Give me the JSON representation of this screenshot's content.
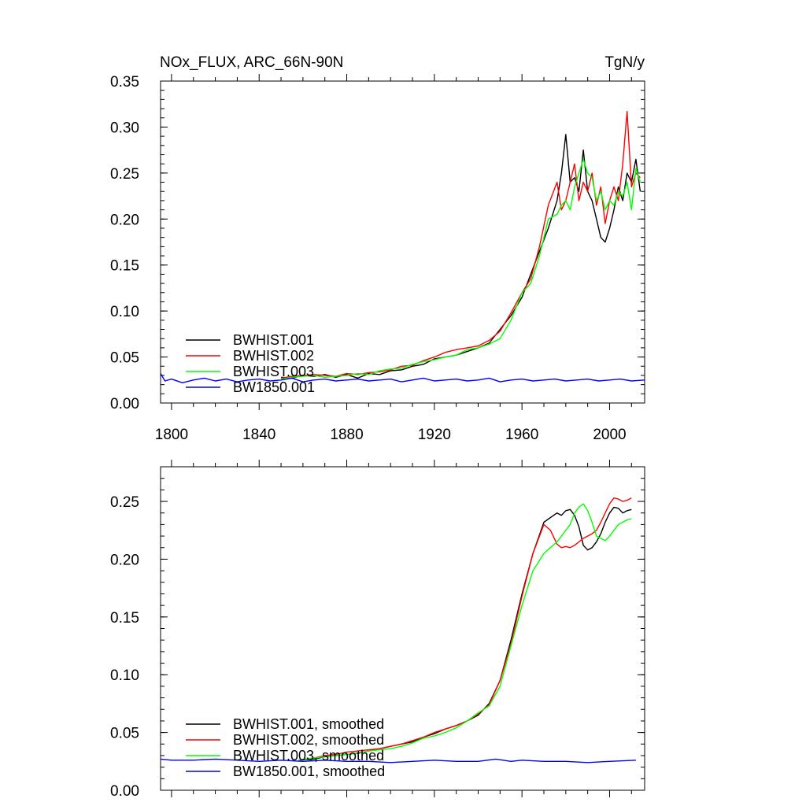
{
  "chart_data": [
    {
      "type": "line",
      "title": "NOx_FLUX, ARC_66N-90N",
      "units": "TgN/y",
      "xlim": [
        1795,
        2016
      ],
      "ylim": [
        0,
        0.35
      ],
      "xticks": [
        1800,
        1840,
        1880,
        1920,
        1960,
        2000
      ],
      "xtick_labels": [
        "1800",
        "1840",
        "1880",
        "1920",
        "1960",
        "2000"
      ],
      "yticks": [
        0,
        0.05,
        0.1,
        0.15,
        0.2,
        0.25,
        0.3,
        0.35
      ],
      "ytick_labels": [
        "0.00",
        "0.05",
        "0.10",
        "0.15",
        "0.20",
        "0.25",
        "0.30",
        "0.35"
      ],
      "legend_position": "bottom-left",
      "series": [
        {
          "name": "BWHIST.001",
          "color": "#000000",
          "x": [
            1850,
            1855,
            1860,
            1865,
            1870,
            1875,
            1880,
            1885,
            1890,
            1895,
            1900,
            1905,
            1910,
            1915,
            1920,
            1925,
            1930,
            1935,
            1940,
            1945,
            1950,
            1955,
            1960,
            1964,
            1968,
            1972,
            1976,
            1978,
            1980,
            1982,
            1984,
            1986,
            1988,
            1990,
            1992,
            1994,
            1996,
            1998,
            2000,
            2002,
            2004,
            2006,
            2008,
            2010,
            2012,
            2014
          ],
          "y": [
            0.028,
            0.027,
            0.03,
            0.029,
            0.031,
            0.028,
            0.031,
            0.027,
            0.032,
            0.031,
            0.035,
            0.036,
            0.04,
            0.042,
            0.048,
            0.05,
            0.052,
            0.056,
            0.06,
            0.065,
            0.08,
            0.095,
            0.115,
            0.14,
            0.165,
            0.19,
            0.22,
            0.25,
            0.292,
            0.24,
            0.245,
            0.23,
            0.275,
            0.23,
            0.22,
            0.2,
            0.18,
            0.175,
            0.19,
            0.21,
            0.235,
            0.22,
            0.25,
            0.24,
            0.265,
            0.23
          ]
        },
        {
          "name": "BWHIST.002",
          "color": "#ff0000",
          "x": [
            1850,
            1855,
            1860,
            1865,
            1870,
            1875,
            1880,
            1885,
            1890,
            1895,
            1900,
            1905,
            1910,
            1915,
            1920,
            1925,
            1930,
            1935,
            1940,
            1945,
            1950,
            1955,
            1960,
            1964,
            1968,
            1972,
            1976,
            1978,
            1980,
            1982,
            1984,
            1986,
            1988,
            1990,
            1992,
            1994,
            1996,
            1998,
            2000,
            2002,
            2004,
            2006,
            2008,
            2010,
            2012,
            2014
          ],
          "y": [
            0.027,
            0.029,
            0.03,
            0.031,
            0.03,
            0.029,
            0.032,
            0.031,
            0.033,
            0.034,
            0.036,
            0.04,
            0.041,
            0.046,
            0.05,
            0.055,
            0.058,
            0.06,
            0.062,
            0.068,
            0.078,
            0.098,
            0.12,
            0.135,
            0.17,
            0.215,
            0.24,
            0.21,
            0.22,
            0.24,
            0.26,
            0.22,
            0.24,
            0.23,
            0.25,
            0.215,
            0.235,
            0.195,
            0.22,
            0.235,
            0.22,
            0.26,
            0.317,
            0.235,
            0.25,
            0.245
          ]
        },
        {
          "name": "BWHIST.003",
          "color": "#00ff00",
          "x": [
            1850,
            1855,
            1860,
            1865,
            1870,
            1875,
            1880,
            1885,
            1890,
            1895,
            1900,
            1905,
            1910,
            1915,
            1920,
            1925,
            1930,
            1935,
            1940,
            1945,
            1950,
            1955,
            1960,
            1964,
            1968,
            1972,
            1976,
            1978,
            1980,
            1982,
            1984,
            1986,
            1988,
            1990,
            1992,
            1994,
            1996,
            1998,
            2000,
            2002,
            2004,
            2006,
            2008,
            2010,
            2012,
            2014
          ],
          "y": [
            0.026,
            0.028,
            0.029,
            0.03,
            0.028,
            0.029,
            0.03,
            0.032,
            0.031,
            0.035,
            0.037,
            0.038,
            0.042,
            0.045,
            0.047,
            0.05,
            0.052,
            0.058,
            0.06,
            0.064,
            0.07,
            0.09,
            0.12,
            0.13,
            0.16,
            0.2,
            0.205,
            0.215,
            0.22,
            0.21,
            0.235,
            0.25,
            0.265,
            0.25,
            0.245,
            0.22,
            0.23,
            0.21,
            0.22,
            0.215,
            0.23,
            0.225,
            0.24,
            0.21,
            0.255,
            0.24
          ]
        },
        {
          "name": "BW1850.001",
          "color": "#0000ff",
          "x": [
            1795,
            1797,
            1800,
            1805,
            1810,
            1815,
            1820,
            1825,
            1830,
            1835,
            1840,
            1845,
            1850,
            1855,
            1860,
            1865,
            1870,
            1875,
            1880,
            1885,
            1890,
            1895,
            1900,
            1905,
            1910,
            1915,
            1920,
            1925,
            1930,
            1935,
            1940,
            1945,
            1950,
            1955,
            1960,
            1965,
            1970,
            1975,
            1980,
            1985,
            1990,
            1995,
            2000,
            2005,
            2010,
            2016
          ],
          "y": [
            0.032,
            0.024,
            0.026,
            0.022,
            0.025,
            0.027,
            0.024,
            0.026,
            0.023,
            0.025,
            0.026,
            0.024,
            0.025,
            0.027,
            0.023,
            0.025,
            0.026,
            0.024,
            0.025,
            0.026,
            0.024,
            0.025,
            0.026,
            0.023,
            0.025,
            0.027,
            0.024,
            0.025,
            0.026,
            0.024,
            0.025,
            0.027,
            0.023,
            0.025,
            0.026,
            0.024,
            0.025,
            0.026,
            0.024,
            0.025,
            0.026,
            0.024,
            0.025,
            0.026,
            0.024,
            0.025
          ]
        }
      ]
    },
    {
      "type": "line",
      "xlim": [
        1795,
        2016
      ],
      "ylim": [
        0,
        0.28
      ],
      "xticks": [
        1800,
        1840,
        1880,
        1920,
        1960,
        2000
      ],
      "yticks": [
        0,
        0.05,
        0.1,
        0.15,
        0.2,
        0.25
      ],
      "ytick_labels": [
        "0.00",
        "0.05",
        "0.10",
        "0.15",
        "0.20",
        "0.25"
      ],
      "legend_position": "bottom-left",
      "series": [
        {
          "name": "BWHIST.001, smoothed",
          "color": "#000000",
          "x": [
            1858,
            1865,
            1870,
            1875,
            1880,
            1885,
            1890,
            1895,
            1900,
            1905,
            1910,
            1915,
            1920,
            1925,
            1930,
            1935,
            1940,
            1945,
            1950,
            1955,
            1960,
            1965,
            1970,
            1973,
            1976,
            1978,
            1980,
            1982,
            1984,
            1986,
            1988,
            1990,
            1992,
            1994,
            1996,
            1998,
            2000,
            2002,
            2004,
            2006,
            2008,
            2010
          ],
          "y": [
            0.026,
            0.027,
            0.029,
            0.03,
            0.031,
            0.032,
            0.034,
            0.036,
            0.038,
            0.04,
            0.042,
            0.046,
            0.049,
            0.053,
            0.056,
            0.06,
            0.065,
            0.075,
            0.095,
            0.13,
            0.17,
            0.205,
            0.232,
            0.236,
            0.24,
            0.238,
            0.242,
            0.243,
            0.238,
            0.228,
            0.212,
            0.208,
            0.21,
            0.215,
            0.222,
            0.232,
            0.24,
            0.245,
            0.244,
            0.24,
            0.242,
            0.243
          ]
        },
        {
          "name": "BWHIST.002, smoothed",
          "color": "#ff0000",
          "x": [
            1858,
            1865,
            1870,
            1875,
            1880,
            1885,
            1890,
            1895,
            1900,
            1905,
            1910,
            1915,
            1920,
            1925,
            1930,
            1935,
            1940,
            1945,
            1950,
            1955,
            1960,
            1965,
            1970,
            1973,
            1976,
            1978,
            1980,
            1982,
            1984,
            1986,
            1988,
            1990,
            1992,
            1994,
            1996,
            1998,
            2000,
            2002,
            2004,
            2006,
            2008,
            2010
          ],
          "y": [
            0.026,
            0.028,
            0.03,
            0.031,
            0.033,
            0.034,
            0.035,
            0.036,
            0.038,
            0.04,
            0.043,
            0.046,
            0.05,
            0.053,
            0.056,
            0.06,
            0.066,
            0.074,
            0.095,
            0.127,
            0.168,
            0.205,
            0.23,
            0.225,
            0.213,
            0.21,
            0.211,
            0.21,
            0.212,
            0.215,
            0.218,
            0.22,
            0.222,
            0.225,
            0.232,
            0.24,
            0.248,
            0.253,
            0.252,
            0.25,
            0.251,
            0.253
          ]
        },
        {
          "name": "BWHIST.003, smoothed",
          "color": "#00ff00",
          "x": [
            1858,
            1865,
            1870,
            1875,
            1880,
            1885,
            1890,
            1895,
            1900,
            1905,
            1910,
            1915,
            1920,
            1925,
            1930,
            1935,
            1940,
            1945,
            1950,
            1955,
            1960,
            1965,
            1970,
            1973,
            1976,
            1978,
            1980,
            1982,
            1984,
            1986,
            1988,
            1990,
            1992,
            1994,
            1996,
            1998,
            2000,
            2002,
            2004,
            2006,
            2008,
            2010
          ],
          "y": [
            0.026,
            0.028,
            0.029,
            0.03,
            0.031,
            0.032,
            0.034,
            0.035,
            0.036,
            0.038,
            0.041,
            0.045,
            0.047,
            0.05,
            0.054,
            0.06,
            0.067,
            0.073,
            0.09,
            0.125,
            0.16,
            0.19,
            0.205,
            0.21,
            0.215,
            0.22,
            0.225,
            0.23,
            0.24,
            0.245,
            0.248,
            0.242,
            0.232,
            0.22,
            0.218,
            0.216,
            0.22,
            0.225,
            0.23,
            0.232,
            0.234,
            0.235
          ]
        },
        {
          "name": "BW1850.001, smoothed",
          "color": "#0000ff",
          "x": [
            1795,
            1800,
            1810,
            1820,
            1830,
            1840,
            1850,
            1860,
            1870,
            1880,
            1890,
            1900,
            1910,
            1920,
            1930,
            1940,
            1948,
            1955,
            1960,
            1970,
            1980,
            1990,
            2000,
            2012
          ],
          "y": [
            0.027,
            0.026,
            0.026,
            0.027,
            0.026,
            0.025,
            0.026,
            0.025,
            0.026,
            0.025,
            0.025,
            0.024,
            0.025,
            0.026,
            0.025,
            0.025,
            0.027,
            0.025,
            0.026,
            0.025,
            0.025,
            0.024,
            0.025,
            0.026
          ]
        }
      ]
    }
  ]
}
